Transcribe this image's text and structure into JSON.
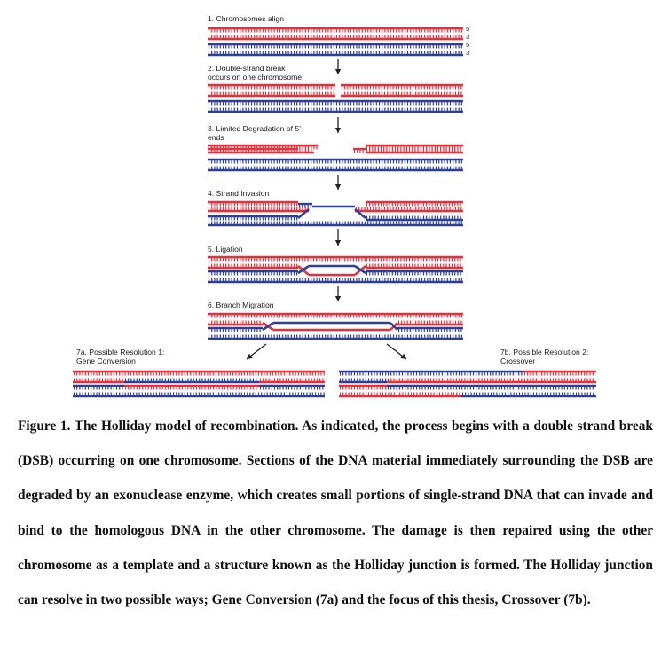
{
  "colors": {
    "red": "#e8303a",
    "blue": "#2e3f9a",
    "arrow": "#222222"
  },
  "figure": {
    "steps": [
      {
        "label": "1. Chromosomes align"
      },
      {
        "label_lines": [
          "2. Double-strand break",
          "occurs on one chromosome"
        ]
      },
      {
        "label_lines": [
          "3. Limited Degradation of 5'",
          "ends"
        ]
      },
      {
        "label": "4. Strand Invasion"
      },
      {
        "label": "5. Ligation"
      },
      {
        "label": "6. Branch Migration"
      }
    ],
    "ends": [
      "5'",
      "3'",
      "5'",
      "3'"
    ],
    "resolution_a": {
      "lines": [
        "7a. Possible Resolution 1:",
        "Gene Conversion"
      ]
    },
    "resolution_b": {
      "lines": [
        "7b. Possible Resolution 2:",
        "Crossover"
      ]
    }
  },
  "caption": {
    "lead": "Figure 1.",
    "text": " The Holliday model of recombination. As indicated, the process begins with a double strand break (DSB) occurring on one chromosome. Sections of the DNA material immediately surrounding the DSB are degraded by an exonuclease enzyme, which creates small portions of single-strand DNA that can invade and bind to the homologous DNA in the other chromosome. The damage is then repaired using the other chromosome as a template and a structure known as the Holliday junction is formed. The Holliday junction can resolve in two possible ways; Gene Conversion (7a) and the focus of this thesis, Crossover (7b)."
  }
}
